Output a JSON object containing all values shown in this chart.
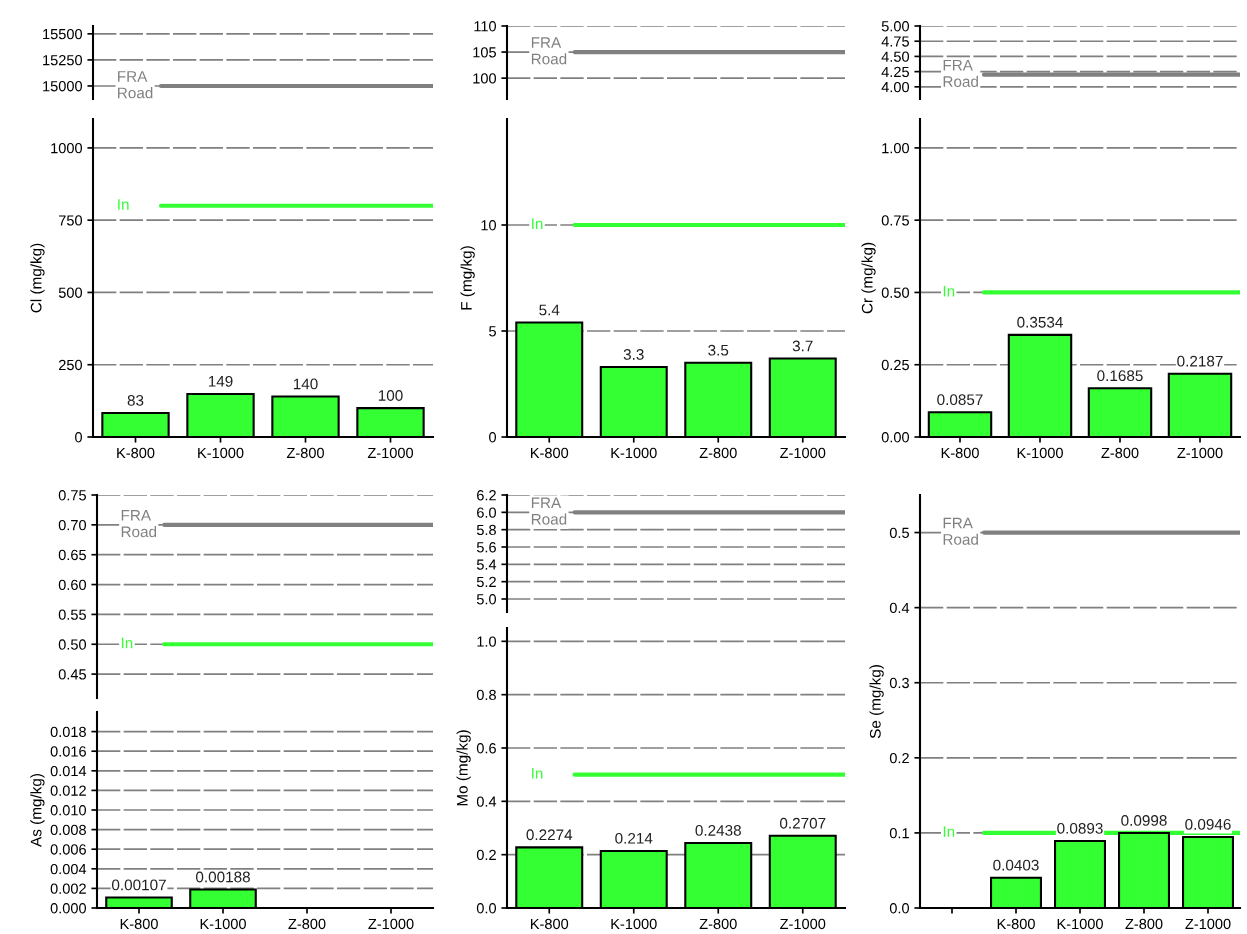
{
  "chart_data": [
    {
      "type": "bar",
      "categories": [
        null,
        null,
        null,
        null
      ],
      "values": [
        null,
        null,
        null,
        null
      ],
      "ylim": [
        14875,
        15575
      ],
      "yticks": [
        15000,
        15250,
        15500
      ],
      "grid": "y",
      "tick_labels": "y",
      "ref_lines": [
        {
          "axis": "y",
          "value": 15000,
          "label": "FRA Road",
          "color": "#808080"
        }
      ]
    },
    {
      "type": "bar",
      "ylabel": "Cl (mg/kg)",
      "categories": [
        "K-800",
        "K-1000",
        "Z-800",
        "Z-1000"
      ],
      "values": [
        83,
        149,
        140,
        100
      ],
      "color": "#33ff33",
      "data_labels": true,
      "ylim": [
        0,
        1100
      ],
      "yticks": [
        0,
        250,
        500,
        750,
        1000
      ],
      "grid": "y",
      "ref_lines": [
        {
          "axis": "y",
          "value": 800,
          "label": "In",
          "color": "#33ff33"
        }
      ]
    },
    {
      "type": "bar",
      "categories": [
        null,
        null,
        null,
        null
      ],
      "values": [
        null,
        null,
        null,
        null
      ],
      "ylim": [
        96,
        110
      ],
      "yticks": [
        100,
        105,
        110
      ],
      "grid": "y",
      "tick_labels": "y",
      "ref_lines": [
        {
          "axis": "y",
          "value": 105,
          "label": "FRA Road",
          "color": "#808080"
        }
      ]
    },
    {
      "type": "bar",
      "ylabel": "F (mg/kg)",
      "categories": [
        "K-800",
        "K-1000",
        "Z-800",
        "Z-1000"
      ],
      "values": [
        5.4,
        3.3,
        3.5,
        3.7
      ],
      "color": "#33ff33",
      "data_labels": true,
      "ylim": [
        0,
        15
      ],
      "yticks": [
        0,
        5,
        10
      ],
      "grid": "y",
      "ref_lines": [
        {
          "axis": "y",
          "value": 10,
          "label": "In",
          "color": "#33ff33"
        }
      ]
    },
    {
      "type": "bar",
      "categories": [
        null,
        null,
        null,
        null
      ],
      "values": [
        null,
        null,
        null,
        null
      ],
      "ylim": [
        3.8,
        5.0
      ],
      "yticks": [
        {
          "value": 4,
          "label": "4.00"
        },
        {
          "value": 4.25,
          "label": "4.25"
        },
        {
          "value": 4.5,
          "label": "4.50"
        },
        {
          "value": 4.75,
          "label": "4.75"
        },
        {
          "value": 5,
          "label": "5.00"
        }
      ],
      "grid": "y",
      "tick_labels": "y",
      "ref_lines": [
        {
          "axis": "y",
          "value": 4.2,
          "label": "FRA Road",
          "color": "#808080"
        }
      ]
    },
    {
      "type": "bar",
      "ylabel": "Cr (mg/kg)",
      "categories": [
        "K-800",
        "K-1000",
        "Z-800",
        "Z-1000"
      ],
      "values": [
        0.0857,
        0.3534,
        0.1685,
        0.2187
      ],
      "color": "#33ff33",
      "data_labels": true,
      "ylim": [
        0,
        1.1
      ],
      "yticks": [
        {
          "value": 0,
          "label": "0.00"
        },
        {
          "value": 0.25,
          "label": "0.25"
        },
        {
          "value": 0.5,
          "label": "0.50"
        },
        {
          "value": 0.75,
          "label": "0.75"
        },
        {
          "value": 1,
          "label": "1.00"
        }
      ],
      "grid": "y",
      "ref_lines": [
        {
          "axis": "y",
          "value": 0.5,
          "label": "In",
          "color": "#33ff33"
        }
      ]
    },
    {
      "type": "bar",
      "categories": [
        null,
        null,
        null,
        null
      ],
      "values": [
        null,
        null,
        null,
        null
      ],
      "ylim": [
        0.41,
        0.75
      ],
      "yticks": [
        {
          "value": 0.45,
          "label": "0.45"
        },
        {
          "value": 0.5,
          "label": "0.50"
        },
        {
          "value": 0.55,
          "label": "0.55"
        },
        {
          "value": 0.6,
          "label": "0.60"
        },
        {
          "value": 0.65,
          "label": "0.65"
        },
        {
          "value": 0.7,
          "label": "0.70"
        },
        {
          "value": 0.75,
          "label": "0.75"
        }
      ],
      "grid": "y",
      "tick_labels": "y",
      "ref_lines": [
        {
          "axis": "y",
          "value": 0.7,
          "label": "FRA Road",
          "color": "#808080"
        },
        {
          "axis": "y",
          "value": 0.5,
          "label": "In",
          "color": "#33ff33"
        }
      ]
    },
    {
      "type": "bar",
      "ylabel": "As (mg/kg)",
      "categories": [
        "K-800",
        "K-1000",
        "Z-800",
        "Z-1000"
      ],
      "values": [
        0.00107,
        0.00188,
        null,
        null
      ],
      "color": "#33ff33",
      "data_labels": true,
      "ylim": [
        0,
        0.02
      ],
      "yticks": [
        {
          "value": 0,
          "label": "0.000"
        },
        {
          "value": 0.002,
          "label": "0.002"
        },
        {
          "value": 0.004,
          "label": "0.004"
        },
        {
          "value": 0.006,
          "label": "0.006"
        },
        {
          "value": 0.008,
          "label": "0.008"
        },
        {
          "value": 0.01,
          "label": "0.010"
        },
        {
          "value": 0.012,
          "label": "0.012"
        },
        {
          "value": 0.014,
          "label": "0.014"
        },
        {
          "value": 0.016,
          "label": "0.016"
        },
        {
          "value": 0.018,
          "label": "0.018"
        }
      ],
      "grid": "y"
    },
    {
      "type": "bar",
      "categories": [
        null,
        null,
        null,
        null
      ],
      "values": [
        null,
        null,
        null,
        null
      ],
      "ylim": [
        4.85,
        6.2
      ],
      "yticks": [
        {
          "value": 5,
          "label": "5.0"
        },
        {
          "value": 5.2,
          "label": "5.2"
        },
        {
          "value": 5.4,
          "label": "5.4"
        },
        {
          "value": 5.6,
          "label": "5.6"
        },
        {
          "value": 5.8,
          "label": "5.8"
        },
        {
          "value": 6,
          "label": "6.0"
        },
        {
          "value": 6.2,
          "label": "6.2"
        }
      ],
      "grid": "y",
      "tick_labels": "y",
      "ref_lines": [
        {
          "axis": "y",
          "value": 6.0,
          "label": "FRA Road",
          "color": "#808080"
        }
      ]
    },
    {
      "type": "bar",
      "ylabel": "Mo (mg/kg)",
      "categories": [
        "K-800",
        "K-1000",
        "Z-800",
        "Z-1000"
      ],
      "values": [
        0.2274,
        0.214,
        0.2438,
        0.2707
      ],
      "color": "#33ff33",
      "data_labels": true,
      "ylim": [
        0,
        1.05
      ],
      "yticks": [
        {
          "value": 0,
          "label": "0.0"
        },
        {
          "value": 0.2,
          "label": "0.2"
        },
        {
          "value": 0.4,
          "label": "0.4"
        },
        {
          "value": 0.6,
          "label": "0.6"
        },
        {
          "value": 0.8,
          "label": "0.8"
        },
        {
          "value": 1,
          "label": "1.0"
        }
      ],
      "grid": "y",
      "ref_lines": [
        {
          "axis": "y",
          "value": 0.5,
          "label": "In",
          "color": "#33ff33"
        }
      ]
    },
    {
      "type": "bar",
      "ylabel": "Se (mg/kg)",
      "categories": [
        null,
        "K-800",
        "K-1000",
        "Z-800",
        "Z-1000"
      ],
      "values": [
        null,
        0.0403,
        0.0893,
        0.0998,
        0.0946
      ],
      "color": "#33ff33",
      "data_labels": true,
      "ylim": [
        0,
        0.55
      ],
      "yticks": [
        {
          "value": 0,
          "label": "0.0"
        },
        {
          "value": 0.1,
          "label": "0.1"
        },
        {
          "value": 0.2,
          "label": "0.2"
        },
        {
          "value": 0.3,
          "label": "0.3"
        },
        {
          "value": 0.4,
          "label": "0.4"
        },
        {
          "value": 0.5,
          "label": "0.5"
        }
      ],
      "grid": "y",
      "ref_lines": [
        {
          "axis": "y",
          "value": 0.5,
          "label": "FRA Road",
          "color": "#808080"
        },
        {
          "axis": "y",
          "value": 0.1,
          "label": "In",
          "color": "#33ff33"
        }
      ]
    }
  ]
}
